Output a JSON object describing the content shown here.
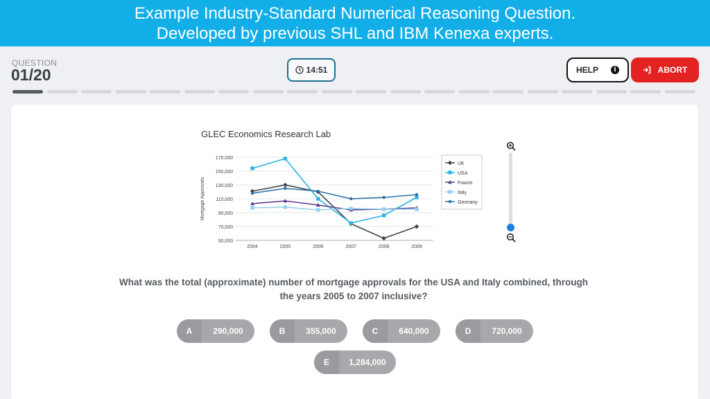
{
  "banner": {
    "line1": "Example Industry-Standard Numerical Reasoning Question.",
    "line2": "Developed by previous SHL and IBM Kenexa experts."
  },
  "header": {
    "question_label": "QUESTION",
    "question_number": "01/20",
    "timer": "14:51",
    "help_label": "HELP",
    "abort_label": "ABORT"
  },
  "progress": {
    "total": 20,
    "current": 1
  },
  "colors": {
    "banner": "#12aee8",
    "abort": "#e52222",
    "timer_border": "#1f6f93"
  },
  "chart_data": {
    "type": "line",
    "title": "GLEC Economics Research Lab",
    "xlabel": "",
    "ylabel": "Mortgage Approvals",
    "x": [
      "2004",
      "2005",
      "2006",
      "2007",
      "2008",
      "2009"
    ],
    "yticks": [
      "50,000",
      "70,000",
      "90,000",
      "110,000",
      "130,000",
      "150,000",
      "170,000"
    ],
    "ylim": [
      50000,
      170000
    ],
    "grid": true,
    "legend_position": "right",
    "series": [
      {
        "name": "UK",
        "color": "#3d4449",
        "marker": "diamond",
        "values": [
          121000,
          130000,
          120000,
          74000,
          53000,
          70000
        ]
      },
      {
        "name": "USA",
        "color": "#27b3e3",
        "marker": "square",
        "values": [
          154000,
          168000,
          110000,
          75000,
          86000,
          112000
        ]
      },
      {
        "name": "France",
        "color": "#5b3c8c",
        "marker": "triangle",
        "values": [
          103000,
          107000,
          101000,
          94000,
          95000,
          97000
        ]
      },
      {
        "name": "Italy",
        "color": "#8fd0ee",
        "marker": "square",
        "values": [
          97000,
          98000,
          94000,
          96000,
          95000,
          95000
        ]
      },
      {
        "name": "Germany",
        "color": "#2a6fa8",
        "marker": "circle",
        "values": [
          118000,
          125000,
          121000,
          110000,
          112000,
          116000
        ]
      }
    ]
  },
  "question": "What was the total (approximate) number of mortgage approvals for the USA and Italy combined, through the years 2005 to 2007 inclusive?",
  "options": [
    {
      "letter": "A",
      "value": "290,000"
    },
    {
      "letter": "B",
      "value": "355,000"
    },
    {
      "letter": "C",
      "value": "640,000"
    },
    {
      "letter": "D",
      "value": "720,000"
    },
    {
      "letter": "E",
      "value": "1,284,000"
    }
  ]
}
